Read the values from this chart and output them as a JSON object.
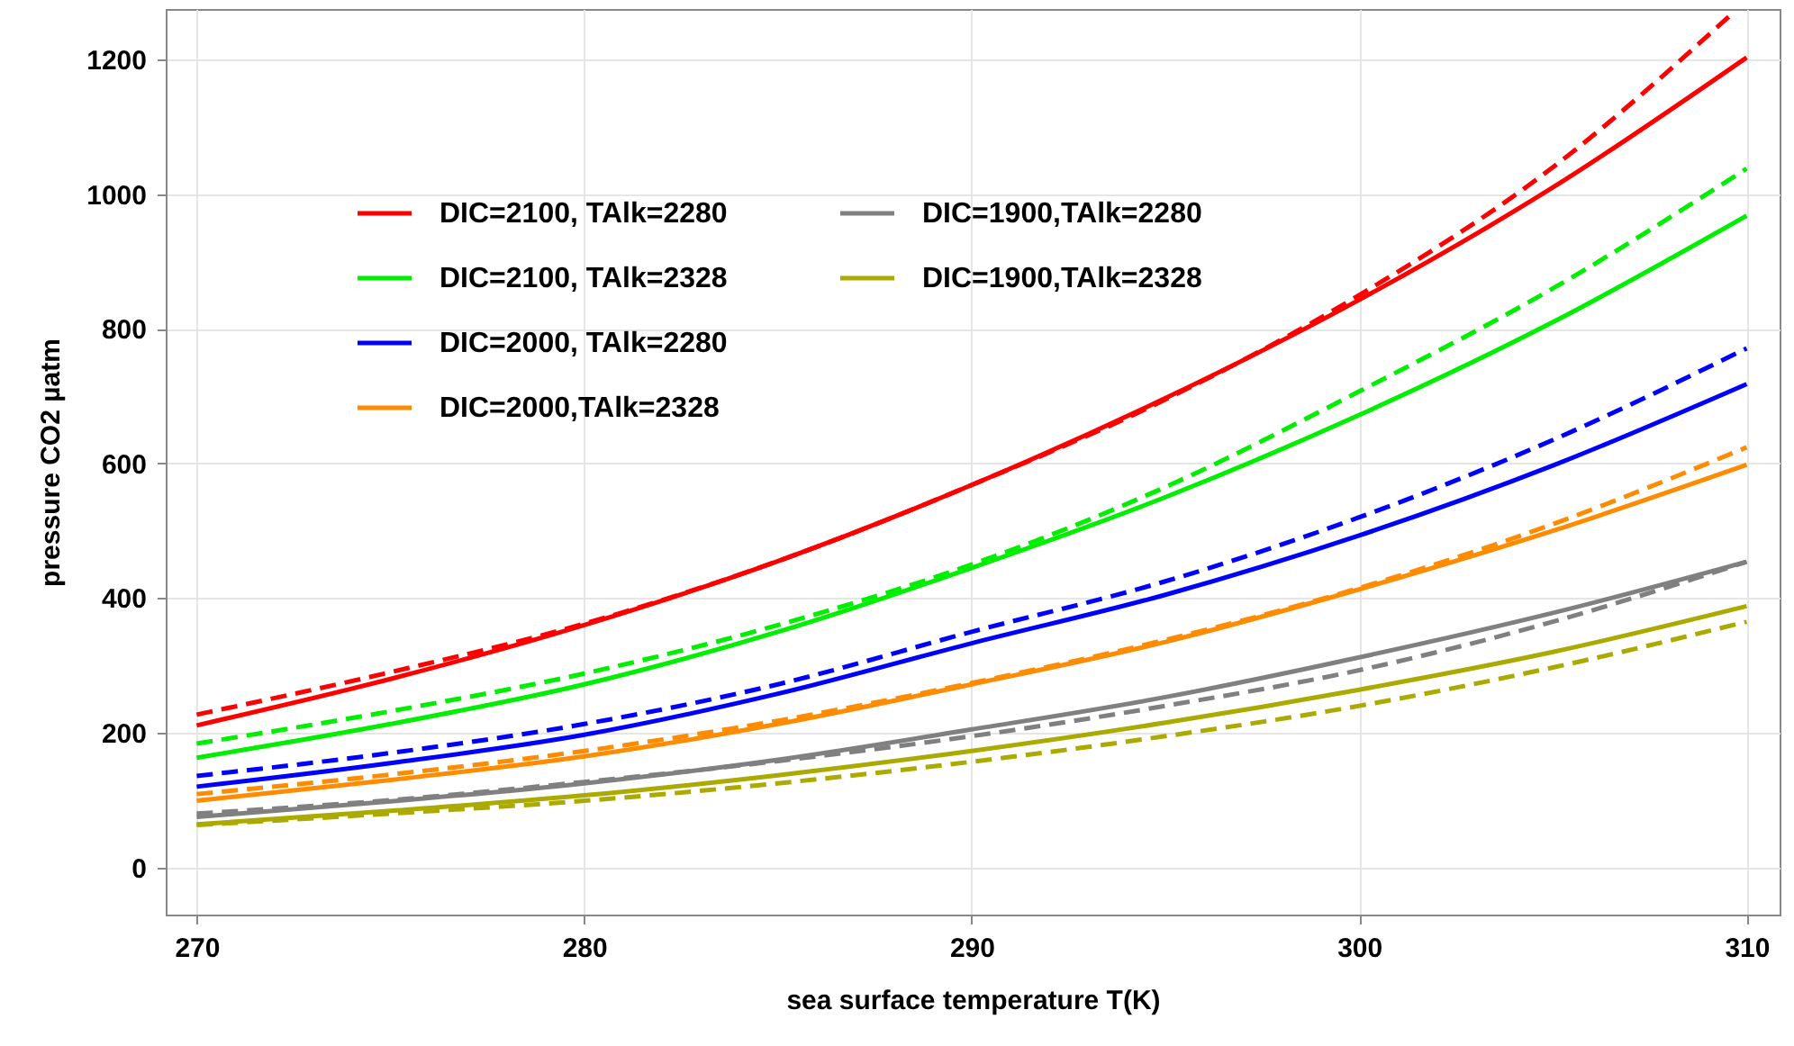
{
  "chart_data": {
    "type": "line",
    "xlabel": "sea surface temperature T(K)",
    "ylabel": "pressure CO2 µatm",
    "x": [
      270,
      275,
      280,
      285,
      290,
      295,
      300,
      305,
      310
    ],
    "xlim": [
      269.2,
      310.85
    ],
    "ylim": [
      -70,
      1275
    ],
    "xticks": [
      270,
      280,
      290,
      300,
      310
    ],
    "yticks": [
      0,
      200,
      400,
      600,
      800,
      1000,
      1200
    ],
    "grid": true,
    "legend": "top left",
    "marker": "none",
    "series": [
      {
        "name": "DIC=2100, TAlk=2280",
        "color": "#ff0000",
        "line_style": "solid",
        "values": [
          211,
          280,
          360,
          455,
          568,
          697,
          843,
          1010,
          1203
        ]
      },
      {
        "name": "DIC=2100, TAlk=2328",
        "color": "#00ee00",
        "line_style": "solid",
        "values": [
          163,
          213,
          272,
          350,
          445,
          550,
          672,
          810,
          968
        ]
      },
      {
        "name": "DIC=2000, TAlk=2280",
        "color": "#0000ff",
        "line_style": "solid",
        "values": [
          120,
          155,
          197,
          258,
          333,
          405,
          493,
          597,
          718
        ]
      },
      {
        "name": "DIC=2000,TAlk=2328",
        "color": "#ff8c00",
        "line_style": "solid",
        "values": [
          99,
          130,
          165,
          213,
          272,
          335,
          413,
          500,
          598
        ]
      },
      {
        "name": "DIC=1900,TAlk=2280",
        "color": "#808080",
        "line_style": "solid",
        "values": [
          75,
          98,
          125,
          160,
          205,
          253,
          312,
          378,
          454
        ]
      },
      {
        "name": "DIC=1900,TAlk=2328",
        "color": "#aaaa00",
        "line_style": "solid",
        "values": [
          64,
          84,
          107,
          137,
          173,
          215,
          264,
          320,
          388
        ]
      },
      {
        "color": "#ff0000",
        "line_style": "dashed",
        "x": [
          270,
          275,
          280,
          285,
          290,
          295,
          300,
          305,
          309.7
        ],
        "values": [
          227,
          290,
          362,
          455,
          568,
          695,
          850,
          1040,
          1272
        ]
      },
      {
        "color": "#00ee00",
        "line_style": "dashed",
        "values": [
          184,
          232,
          288,
          360,
          450,
          565,
          707,
          860,
          1038
        ]
      },
      {
        "color": "#0000ff",
        "line_style": "dashed",
        "values": [
          136,
          170,
          213,
          272,
          350,
          425,
          520,
          635,
          771
        ]
      },
      {
        "color": "#ff8c00",
        "line_style": "dashed",
        "values": [
          109,
          138,
          173,
          218,
          274,
          338,
          415,
          510,
          624
        ]
      },
      {
        "color": "#808080",
        "line_style": "dashed",
        "values": [
          80,
          100,
          127,
          158,
          195,
          240,
          293,
          365,
          454
        ]
      },
      {
        "color": "#aaaa00",
        "line_style": "dashed",
        "values": [
          63,
          80,
          99,
          125,
          157,
          195,
          240,
          297,
          365
        ]
      }
    ]
  }
}
